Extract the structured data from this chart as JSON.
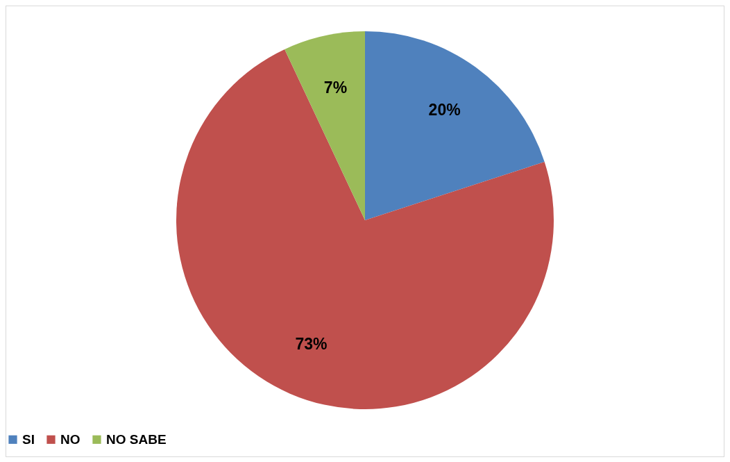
{
  "chart_data": {
    "type": "pie",
    "categories": [
      "SI",
      "NO",
      "NO SABE"
    ],
    "values": [
      20,
      73,
      7
    ],
    "colors": [
      "#4f81bd",
      "#c0504d",
      "#9bbb59"
    ],
    "value_labels": [
      "20%",
      "73%",
      "7%"
    ],
    "legend": "bottom"
  }
}
